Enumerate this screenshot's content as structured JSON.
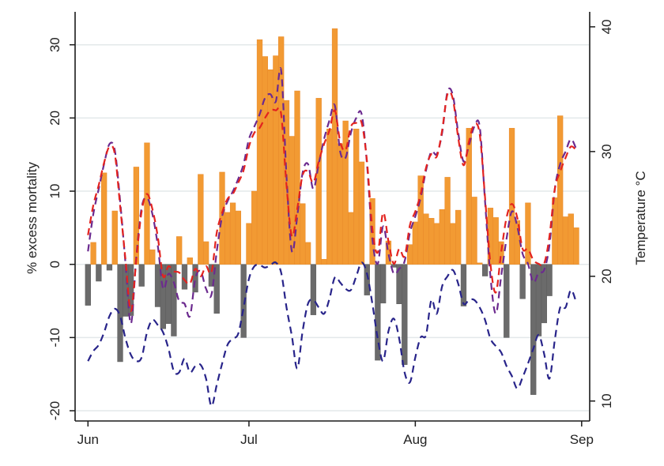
{
  "chart_data": {
    "type": "bar+line",
    "title": "",
    "xlabel": "",
    "ylabel": "% excess mortality",
    "y2label": "Temperature °C",
    "x_tick_labels": [
      "Jun",
      "Jul",
      "Aug",
      "Sep"
    ],
    "x_tick_days": [
      0,
      30,
      61,
      92
    ],
    "y_ticks": [
      -20,
      -10,
      0,
      10,
      20,
      30
    ],
    "y_tick_labels": [
      "-20",
      "-10",
      "0",
      "10",
      "20",
      "30"
    ],
    "y2_ticks": [
      10,
      20,
      30,
      40
    ],
    "y2_tick_labels": [
      "10",
      "20",
      "30",
      "40"
    ],
    "ylim": [
      -21.4,
      34.5
    ],
    "y2lim": [
      8.4,
      41.2
    ],
    "xlim_days": [
      -2.4,
      93.5
    ],
    "grid": true,
    "legend": "none",
    "colors": {
      "positive_bar": "#f29a33",
      "negative_bar": "#6b6b6b",
      "line_red": "#e3231f",
      "line_purple": "#6c2a8f",
      "line_navy": "#28248a",
      "grid": "#e3e8ea",
      "axis": "#1a1a1a"
    },
    "bars": {
      "name": "% excess mortality (daily)",
      "start_day": 0,
      "values": [
        -5.6,
        3.0,
        -2.3,
        12.5,
        -0.8,
        7.3,
        -13.3,
        -7.1,
        -7.0,
        13.3,
        -3.0,
        16.6,
        2.0,
        -5.8,
        -8.8,
        -8.1,
        -9.8,
        3.8,
        -3.4,
        0.9,
        -3.8,
        12.3,
        3.1,
        -3.0,
        -6.7,
        12.6,
        7.1,
        8.4,
        7.3,
        -10.0,
        5.6,
        10.0,
        30.7,
        28.4,
        26.6,
        28.5,
        31.1,
        22.4,
        17.5,
        23.7,
        8.3,
        3.0,
        -6.9,
        22.7,
        0.7,
        18.5,
        32.2,
        16.5,
        19.6,
        7.1,
        18.5,
        14.0,
        -4.2,
        9.0,
        -13.1,
        -5.3,
        3.2,
        -0.4,
        -5.4,
        -13.7,
        2.7,
        5.8,
        12.1,
        6.9,
        6.3,
        5.6,
        7.5,
        11.9,
        5.6,
        7.4,
        -5.7,
        18.6,
        9.2,
        0.2,
        -1.6,
        7.7,
        6.4,
        3.1,
        -10.0,
        18.6,
        6.0,
        -4.7,
        8.4,
        -17.8,
        -9.8,
        -8.0,
        -4.3,
        9.1,
        20.3,
        6.5,
        6.9,
        5.0
      ]
    },
    "series": [
      {
        "name": "temperature-red",
        "axis": "right",
        "style": "dashed",
        "values": [
          23.3,
          25.7,
          27.3,
          29.1,
          30.4,
          29.8,
          25.6,
          21.3,
          17.2,
          21.3,
          25.2,
          26.6,
          25.4,
          23.2,
          20.0,
          20.8,
          20.4,
          20.3,
          19.7,
          19.4,
          20.6,
          20.0,
          20.8,
          20.3,
          23.5,
          25.1,
          26.2,
          26.6,
          27.5,
          28.5,
          30.4,
          31.5,
          31.9,
          32.7,
          33.3,
          33.3,
          33.0,
          27.3,
          23.2,
          25.4,
          28.1,
          28.4,
          27.5,
          29.2,
          30.6,
          31.7,
          33.3,
          30.8,
          30.1,
          32.0,
          32.3,
          32.3,
          29.2,
          23.8,
          21.9,
          25.1,
          22.8,
          21.0,
          22.2,
          21.6,
          24.1,
          25.2,
          26.6,
          28.7,
          29.8,
          29.6,
          31.7,
          34.6,
          34.2,
          31.1,
          28.9,
          30.8,
          32.2,
          31.4,
          26.3,
          21.0,
          18.7,
          21.9,
          24.7,
          25.8,
          24.7,
          22.2,
          22.2,
          21.3,
          21.0,
          21.0,
          23.2,
          27.0,
          28.4,
          29.5,
          30.4,
          30.1
        ]
      },
      {
        "name": "temperature-purple",
        "axis": "right",
        "style": "dashed",
        "values": [
          22.0,
          25.0,
          27.0,
          29.0,
          30.6,
          30.1,
          26.0,
          21.0,
          16.2,
          21.5,
          25.5,
          26.3,
          25.0,
          22.5,
          19.0,
          20.2,
          19.5,
          18.0,
          17.8,
          16.8,
          19.8,
          20.4,
          19.0,
          18.5,
          22.0,
          24.8,
          26.0,
          26.8,
          27.8,
          29.0,
          31.0,
          32.0,
          33.0,
          34.3,
          34.6,
          34.0,
          36.5,
          28.0,
          22.0,
          24.8,
          28.3,
          29.0,
          27.0,
          29.0,
          31.0,
          32.5,
          33.7,
          30.0,
          29.5,
          31.5,
          32.7,
          33.0,
          29.0,
          23.0,
          21.0,
          24.0,
          21.8,
          20.2,
          20.6,
          21.2,
          23.5,
          24.8,
          26.3,
          28.5,
          30.0,
          29.8,
          31.5,
          34.8,
          34.5,
          31.5,
          29.2,
          30.5,
          32.0,
          32.0,
          26.0,
          20.0,
          17.0,
          20.0,
          23.0,
          25.2,
          24.0,
          21.8,
          21.0,
          19.5,
          20.3,
          20.5,
          22.5,
          27.0,
          29.0,
          30.0,
          31.0,
          30.2
        ]
      },
      {
        "name": "temperature-navy",
        "axis": "right",
        "style": "dashed",
        "values": [
          13.2,
          14.0,
          14.5,
          15.5,
          16.8,
          17.4,
          16.8,
          15.0,
          13.7,
          13.2,
          13.5,
          15.5,
          16.5,
          16.1,
          15.5,
          14.2,
          12.4,
          12.3,
          13.4,
          12.3,
          12.8,
          12.9,
          11.8,
          9.6,
          11.3,
          13.0,
          14.5,
          15.0,
          15.4,
          17.5,
          19.8,
          20.8,
          20.9,
          20.7,
          20.9,
          21.1,
          20.3,
          17.5,
          15.2,
          12.6,
          15.6,
          17.8,
          18.1,
          17.5,
          17.0,
          18.2,
          19.9,
          19.5,
          19.0,
          18.9,
          20.0,
          21.1,
          20.2,
          17.8,
          15.0,
          13.2,
          15.6,
          16.6,
          15.0,
          12.3,
          11.5,
          13.5,
          15.1,
          15.3,
          18.1,
          17.0,
          19.2,
          20.0,
          20.5,
          19.4,
          17.8,
          18.1,
          18.1,
          17.5,
          16.5,
          15.0,
          14.4,
          13.9,
          12.8,
          12.0,
          11.0,
          11.9,
          13.0,
          14.2,
          15.3,
          13.8,
          11.8,
          14.9,
          17.5,
          17.5,
          18.9,
          17.9
        ]
      }
    ]
  }
}
